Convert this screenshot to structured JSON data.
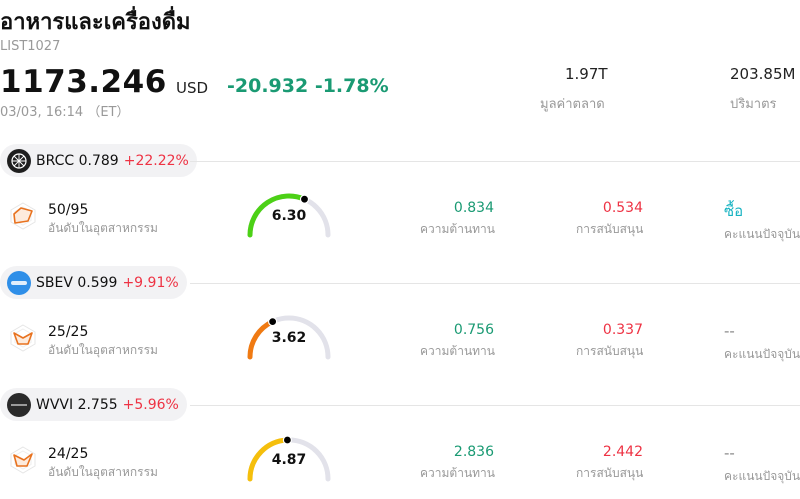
{
  "header": {
    "title": "อาหารและเครื่องดื่ม",
    "code": "LIST1027",
    "price": "1173.246",
    "currency": "USD",
    "change": "-20.932 -1.78%",
    "timestamp": "03/03, 16:14 （ET）",
    "market_cap_value": "1.97T",
    "market_cap_label": "มูลค่าตลาด",
    "volume_value": "203.85M",
    "volume_label": "ปริมาตร"
  },
  "colors": {
    "up_green": "#1a9a73",
    "down_red": "#ee3344",
    "rating_buy": "#17b3c2"
  },
  "rows": [
    {
      "ticker_line": "BRCC 0.789",
      "change_pct": "+22.22%",
      "logo": "brcc-logo-icon",
      "rank": "50/95",
      "rank_label": "อันดับในอุตสาหกรรม",
      "score": "6.30",
      "score_level": 0.63,
      "gauge_color": "#4cd116",
      "resistance": "0.834",
      "resistance_label": "ความต้านทาน",
      "support": "0.534",
      "support_label": "การสนับสนุน",
      "rating": "ซื้อ",
      "rating_label": "คะแนนปัจจุบัน"
    },
    {
      "ticker_line": "SBEV 0.599",
      "change_pct": "+9.91%",
      "logo": "sbev-logo-icon",
      "rank": "25/25",
      "rank_label": "อันดับในอุตสาหกรรม",
      "score": "3.62",
      "score_level": 0.362,
      "gauge_color": "#f07a12",
      "resistance": "0.756",
      "resistance_label": "ความต้านทาน",
      "support": "0.337",
      "support_label": "การสนับสนุน",
      "rating": "--",
      "rating_label": "คะแนนปัจจุบัน"
    },
    {
      "ticker_line": "WVVI 2.755",
      "change_pct": "+5.96%",
      "logo": "wvvi-logo-icon",
      "rank": "24/25",
      "rank_label": "อันดับในอุตสาหกรรม",
      "score": "4.87",
      "score_level": 0.487,
      "gauge_color": "#f5bf0c",
      "resistance": "2.836",
      "resistance_label": "ความต้านทาน",
      "support": "2.442",
      "support_label": "การสนับสนุน",
      "rating": "--",
      "rating_label": "คะแนนปัจจุบัน"
    }
  ]
}
